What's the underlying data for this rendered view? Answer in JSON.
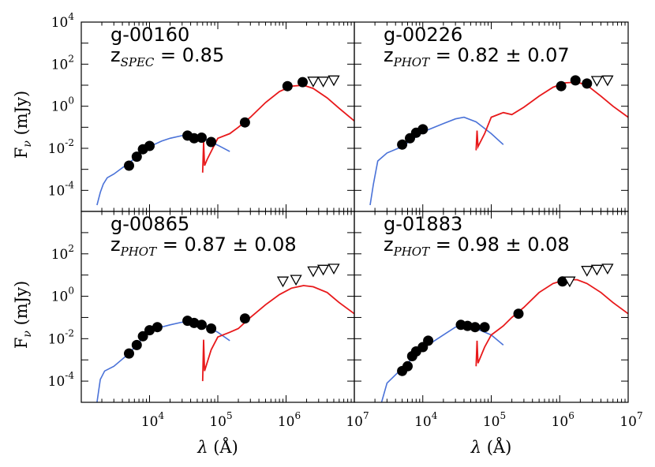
{
  "chart_data": [
    {
      "type": "scatter",
      "title": "g-00160",
      "redshift": {
        "prefix": "z",
        "kind": "SPEC",
        "text": " = 0.85"
      },
      "xlabel": "λ (Å)",
      "ylabel": "Fν (mJy)",
      "x_scale": "log",
      "y_scale": "log",
      "xlim": [
        1000,
        10000000
      ],
      "ylim": [
        1e-05,
        10000
      ],
      "detections": [
        [
          5000,
          0.0015
        ],
        [
          6500,
          0.004
        ],
        [
          8000,
          0.009
        ],
        [
          10000,
          0.013
        ],
        [
          36000,
          0.04
        ],
        [
          45000,
          0.03
        ],
        [
          58000,
          0.032
        ],
        [
          80000,
          0.02
        ],
        [
          250000,
          0.17
        ],
        [
          1050000,
          9
        ],
        [
          1750000,
          14
        ]
      ],
      "upper_limits": [
        [
          2500000,
          15
        ],
        [
          3500000,
          15
        ],
        [
          5000000,
          17
        ]
      ],
      "stellar_model": [
        [
          1700,
          2e-05
        ],
        [
          1900,
          8e-05
        ],
        [
          2100,
          0.0002
        ],
        [
          2400,
          0.0004
        ],
        [
          3000,
          0.0006
        ],
        [
          4000,
          0.0012
        ],
        [
          5000,
          0.002
        ],
        [
          7000,
          0.005
        ],
        [
          10000,
          0.012
        ],
        [
          15000,
          0.022
        ],
        [
          20000,
          0.03
        ],
        [
          30000,
          0.04
        ],
        [
          40000,
          0.04
        ],
        [
          60000,
          0.03
        ],
        [
          80000,
          0.02
        ],
        [
          100000,
          0.014
        ],
        [
          150000,
          0.007
        ]
      ],
      "dust_model": [
        [
          60000,
          0.0007
        ],
        [
          62000,
          0.02
        ],
        [
          64000,
          0.0015
        ],
        [
          70000,
          0.003
        ],
        [
          100000,
          0.03
        ],
        [
          150000,
          0.05
        ],
        [
          200000,
          0.1
        ],
        [
          300000,
          0.3
        ],
        [
          500000,
          1.5
        ],
        [
          800000,
          5
        ],
        [
          1200000,
          9
        ],
        [
          1800000,
          10
        ],
        [
          2500000,
          7
        ],
        [
          4000000,
          2.5
        ],
        [
          6000000,
          0.8
        ],
        [
          10000000,
          0.2
        ]
      ]
    },
    {
      "type": "scatter",
      "title": "g-00226",
      "redshift": {
        "prefix": "z",
        "kind": "PHOT",
        "text": " = 0.82 ± 0.07"
      },
      "xlabel": "λ (Å)",
      "ylabel": "Fν (mJy)",
      "x_scale": "log",
      "y_scale": "log",
      "xlim": [
        1000,
        10000000
      ],
      "ylim": [
        1e-05,
        10000
      ],
      "detections": [
        [
          5000,
          0.015
        ],
        [
          6500,
          0.03
        ],
        [
          8000,
          0.055
        ],
        [
          10000,
          0.08
        ],
        [
          1050000,
          9
        ],
        [
          1700000,
          17
        ],
        [
          2500000,
          12
        ]
      ],
      "upper_limits": [
        [
          3500000,
          16
        ],
        [
          5000000,
          17
        ]
      ],
      "stellar_model": [
        [
          1700,
          2e-05
        ],
        [
          1900,
          0.0002
        ],
        [
          2200,
          0.0025
        ],
        [
          3000,
          0.006
        ],
        [
          5000,
          0.012
        ],
        [
          10000,
          0.06
        ],
        [
          20000,
          0.15
        ],
        [
          30000,
          0.25
        ],
        [
          40000,
          0.3
        ],
        [
          60000,
          0.18
        ],
        [
          100000,
          0.05
        ],
        [
          150000,
          0.015
        ]
      ],
      "dust_model": [
        [
          60000,
          0.008
        ],
        [
          62000,
          0.07
        ],
        [
          64000,
          0.012
        ],
        [
          80000,
          0.05
        ],
        [
          100000,
          0.3
        ],
        [
          150000,
          0.5
        ],
        [
          200000,
          0.4
        ],
        [
          300000,
          0.9
        ],
        [
          500000,
          3
        ],
        [
          800000,
          8
        ],
        [
          1200000,
          13
        ],
        [
          1800000,
          14
        ],
        [
          2500000,
          10
        ],
        [
          4000000,
          3
        ],
        [
          6000000,
          1
        ],
        [
          10000000,
          0.3
        ]
      ]
    },
    {
      "type": "scatter",
      "title": "g-00865",
      "redshift": {
        "prefix": "z",
        "kind": "PHOT",
        "text": " = 0.87 ± 0.08"
      },
      "xlabel": "λ (Å)",
      "ylabel": "Fν (mJy)",
      "x_scale": "log",
      "y_scale": "log",
      "xlim": [
        1000,
        10000000
      ],
      "ylim": [
        1e-05,
        10000
      ],
      "detections": [
        [
          5000,
          0.002
        ],
        [
          6500,
          0.005
        ],
        [
          8000,
          0.013
        ],
        [
          10000,
          0.025
        ],
        [
          13000,
          0.035
        ],
        [
          36000,
          0.07
        ],
        [
          45000,
          0.055
        ],
        [
          58000,
          0.045
        ],
        [
          80000,
          0.03
        ],
        [
          250000,
          0.09
        ]
      ],
      "upper_limits": [
        [
          900000,
          5
        ],
        [
          1400000,
          6
        ],
        [
          2500000,
          15
        ],
        [
          3500000,
          18
        ],
        [
          5000000,
          20
        ]
      ],
      "stellar_model": [
        [
          1700,
          1e-05
        ],
        [
          1900,
          0.00012
        ],
        [
          2200,
          0.0003
        ],
        [
          3000,
          0.0005
        ],
        [
          5000,
          0.002
        ],
        [
          10000,
          0.025
        ],
        [
          20000,
          0.045
        ],
        [
          30000,
          0.06
        ],
        [
          40000,
          0.06
        ],
        [
          60000,
          0.045
        ],
        [
          100000,
          0.02
        ],
        [
          150000,
          0.008
        ]
      ],
      "dust_model": [
        [
          60000,
          0.0001
        ],
        [
          62000,
          0.009
        ],
        [
          64000,
          0.0003
        ],
        [
          80000,
          0.003
        ],
        [
          100000,
          0.012
        ],
        [
          150000,
          0.02
        ],
        [
          200000,
          0.03
        ],
        [
          300000,
          0.1
        ],
        [
          500000,
          0.4
        ],
        [
          800000,
          1.2
        ],
        [
          1200000,
          2.4
        ],
        [
          1800000,
          3.2
        ],
        [
          2500000,
          2.8
        ],
        [
          4000000,
          1.5
        ],
        [
          6000000,
          0.5
        ],
        [
          10000000,
          0.15
        ]
      ]
    },
    {
      "type": "scatter",
      "title": "g-01883",
      "redshift": {
        "prefix": "z",
        "kind": "PHOT",
        "text": " = 0.98 ± 0.08"
      },
      "xlabel": "λ (Å)",
      "ylabel": "Fν (mJy)",
      "x_scale": "log",
      "y_scale": "log",
      "xlim": [
        1000,
        10000000
      ],
      "ylim": [
        1e-05,
        10000
      ],
      "detections": [
        [
          5000,
          0.0003
        ],
        [
          6000,
          0.0005
        ],
        [
          7000,
          0.0015
        ],
        [
          8000,
          0.0025
        ],
        [
          10000,
          0.004
        ],
        [
          12000,
          0.008
        ],
        [
          36000,
          0.045
        ],
        [
          45000,
          0.04
        ],
        [
          58000,
          0.035
        ],
        [
          80000,
          0.035
        ],
        [
          250000,
          0.15
        ],
        [
          1100000,
          5
        ]
      ],
      "upper_limits": [
        [
          1400000,
          5
        ],
        [
          2500000,
          16
        ],
        [
          3500000,
          18
        ],
        [
          5000000,
          20
        ]
      ],
      "stellar_model": [
        [
          2500,
          1e-05
        ],
        [
          3000,
          8e-05
        ],
        [
          5000,
          0.0004
        ],
        [
          10000,
          0.0035
        ],
        [
          20000,
          0.015
        ],
        [
          30000,
          0.035
        ],
        [
          40000,
          0.045
        ],
        [
          60000,
          0.03
        ],
        [
          100000,
          0.015
        ],
        [
          150000,
          0.005
        ]
      ],
      "dust_model": [
        [
          60000,
          0.0005
        ],
        [
          62000,
          0.008
        ],
        [
          64000,
          0.0007
        ],
        [
          80000,
          0.004
        ],
        [
          100000,
          0.015
        ],
        [
          150000,
          0.04
        ],
        [
          200000,
          0.1
        ],
        [
          300000,
          0.3
        ],
        [
          500000,
          1.5
        ],
        [
          800000,
          4
        ],
        [
          1200000,
          6
        ],
        [
          1800000,
          6
        ],
        [
          2500000,
          4
        ],
        [
          4000000,
          1.5
        ],
        [
          6000000,
          0.5
        ],
        [
          10000000,
          0.15
        ]
      ]
    }
  ],
  "colors": {
    "stellar": "#4a72d8",
    "dust": "#e8191b",
    "points": "#000000",
    "frame": "#000000"
  },
  "axes": {
    "xlabel": "λ (Å)",
    "ylabel": "Fν (mJy)",
    "x_ticks": [
      4,
      5,
      6,
      7
    ],
    "y_ticks_top": [
      -4,
      -2,
      0,
      2,
      4
    ],
    "y_ticks_bottom": [
      -4,
      -2,
      0,
      2
    ]
  }
}
